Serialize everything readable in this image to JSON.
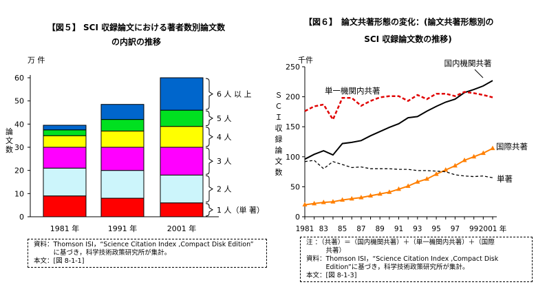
{
  "chart_data": [
    {
      "type": "bar",
      "stacked": true,
      "title_lines": [
        "【図５】 SCI 収録論文における著者数別論文数",
        "の内訳の推移"
      ],
      "unit": "万 件",
      "ylabel": "論文数",
      "ylim": [
        0,
        60
      ],
      "yticks": [
        0,
        10,
        20,
        30,
        40,
        50,
        60
      ],
      "categories": [
        "1981 年",
        "1991 年",
        "2001 年"
      ],
      "series": [
        {
          "name": "1 人（単 著）",
          "color": "#ff0000",
          "values": [
            9,
            8,
            6
          ]
        },
        {
          "name": "2 人",
          "color": "#ccf5fb",
          "values": [
            12,
            12,
            12
          ]
        },
        {
          "name": "3 人",
          "color": "#ff00ff",
          "values": [
            9,
            10,
            12
          ]
        },
        {
          "name": "4 人",
          "color": "#ffff00",
          "values": [
            5,
            7,
            9
          ]
        },
        {
          "name": "5 人",
          "color": "#00e020",
          "values": [
            2.5,
            5,
            7
          ]
        },
        {
          "name": "6 人 以 上",
          "color": "#0066cc",
          "values": [
            2,
            6.5,
            14
          ]
        }
      ],
      "legend_position": "right",
      "note_lines": [
        "資料：Thomson ISI，“Science Citation Index ,Compact Disk Edition”",
        "　　　に基づき，科学技術政策研究所が集計。",
        "本文：[図 8-1-1]"
      ]
    },
    {
      "type": "line",
      "title_lines": [
        "【図６】　論文共著形態の変化：(論文共著形態別の",
        "SCI 収録論文数の推移)"
      ],
      "unit": "千件",
      "ylabel": "ＳＣＩ収録論文数",
      "ylim": [
        0,
        250
      ],
      "yticks": [
        0,
        50,
        100,
        150,
        200,
        250
      ],
      "x": [
        1981,
        1982,
        1983,
        1984,
        1985,
        1986,
        1987,
        1988,
        1989,
        1990,
        1991,
        1992,
        1993,
        1994,
        1995,
        1996,
        1997,
        1998,
        1999,
        2000,
        2001
      ],
      "xtick_labels": [
        "1981",
        "83",
        "85",
        "87",
        "89",
        "91",
        "93",
        "95",
        "97",
        "99",
        "2001 年"
      ],
      "series": [
        {
          "name": "国内機関共著",
          "color": "#000000",
          "style": "solid",
          "values": [
            96,
            104,
            110,
            103,
            122,
            124,
            127,
            135,
            142,
            149,
            155,
            165,
            167,
            176,
            184,
            191,
            196,
            207,
            212,
            218,
            227
          ]
        },
        {
          "name": "単一機関内共著",
          "color": "#e00000",
          "style": "dashed",
          "values": [
            176,
            184,
            187,
            162,
            198,
            198,
            185,
            193,
            199,
            201,
            201,
            193,
            203,
            196,
            205,
            205,
            201,
            208,
            206,
            203,
            199
          ]
        },
        {
          "name": "国際共著",
          "color": "#ff7f00",
          "style": "solid",
          "marker": "triangle",
          "values": [
            20,
            22,
            24,
            25,
            28,
            30,
            32,
            35,
            38,
            41,
            46,
            51,
            58,
            63,
            71,
            78,
            85,
            94,
            100,
            106,
            114
          ]
        },
        {
          "name": "単著",
          "color": "#000000",
          "style": "dotted",
          "values": [
            92,
            94,
            80,
            92,
            87,
            82,
            83,
            80,
            80,
            80,
            79,
            79,
            77,
            77,
            76,
            75,
            70,
            68,
            67,
            68,
            65
          ]
        }
      ],
      "note_lines": [
        "注 ：（共著）＝（国内機関共著）＋（単一機関内共著）＋（国際",
        "　　　共著）",
        "資料：Thomson ISI，“Science Citation Index ,Compact Disk",
        "　　　Edition”に基づき，科学技術政策研究所が集計。",
        "本文：[図 8-1-3]"
      ]
    }
  ]
}
